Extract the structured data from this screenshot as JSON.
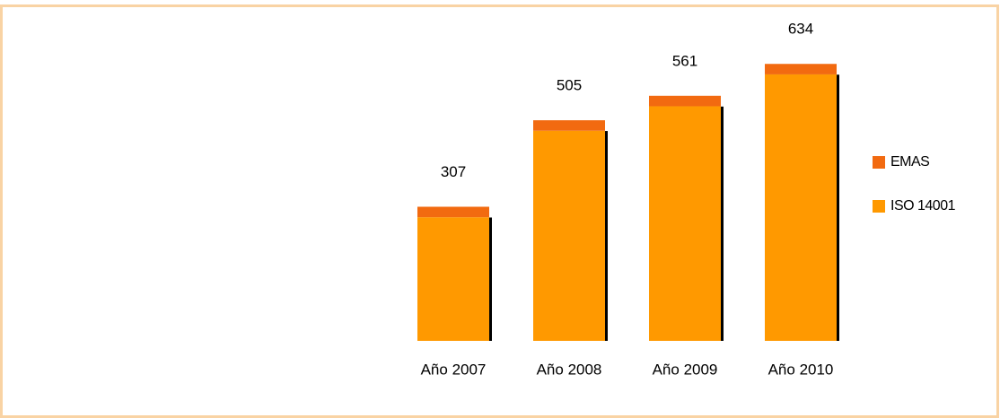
{
  "chart_data": {
    "type": "stacked_bar",
    "categories": [
      "Año 2007",
      "Año 2008",
      "Año 2009",
      "Año 2010"
    ],
    "series": [
      {
        "name": "ISO 14001",
        "color": "#ff9900",
        "values": [
          283,
          481,
          537,
          610
        ]
      },
      {
        "name": "EMAS",
        "color": "#f26a10",
        "values": [
          24,
          24,
          24,
          24
        ]
      }
    ],
    "totals": [
      307,
      505,
      561,
      634
    ],
    "legend": "right"
  }
}
